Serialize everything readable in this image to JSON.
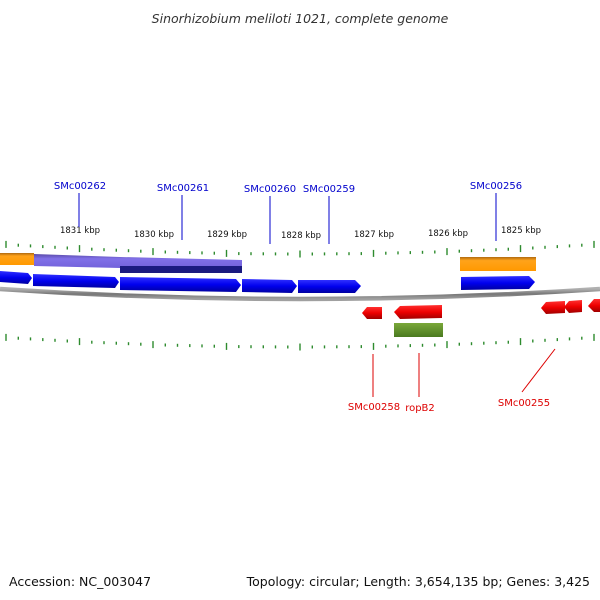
{
  "title": "Sinorhizobium meliloti 1021, complete genome",
  "footer": {
    "accession": "Accession: NC_003047",
    "stats": "Topology: circular; Length: 3,654,135 bp; Genes: 3,425"
  },
  "kbp_labels": [
    "1831 kbp",
    "1830 kbp",
    "1829 kbp",
    "1828 kbp",
    "1827 kbp",
    "1826 kbp",
    "1825 kbp"
  ],
  "colors": {
    "forward_label": "#0000cc",
    "reverse_label": "#dd0000",
    "cds_forward": "#0000ee",
    "cds_reverse": "#ee0000",
    "orange_feature": "#ff9900",
    "purple_feature": "#7b68ee",
    "navy_feature": "#1a1a80",
    "green_feature": "#558b2f",
    "backbone": "#888888",
    "tick": "#2e8b2e"
  },
  "forward_labels": [
    "SMc00262",
    "SMc00261",
    "SMc00260",
    "SMc00259",
    "SMc00256"
  ],
  "reverse_labels": [
    "SMc00258",
    "ropB2",
    "SMc00255"
  ]
}
